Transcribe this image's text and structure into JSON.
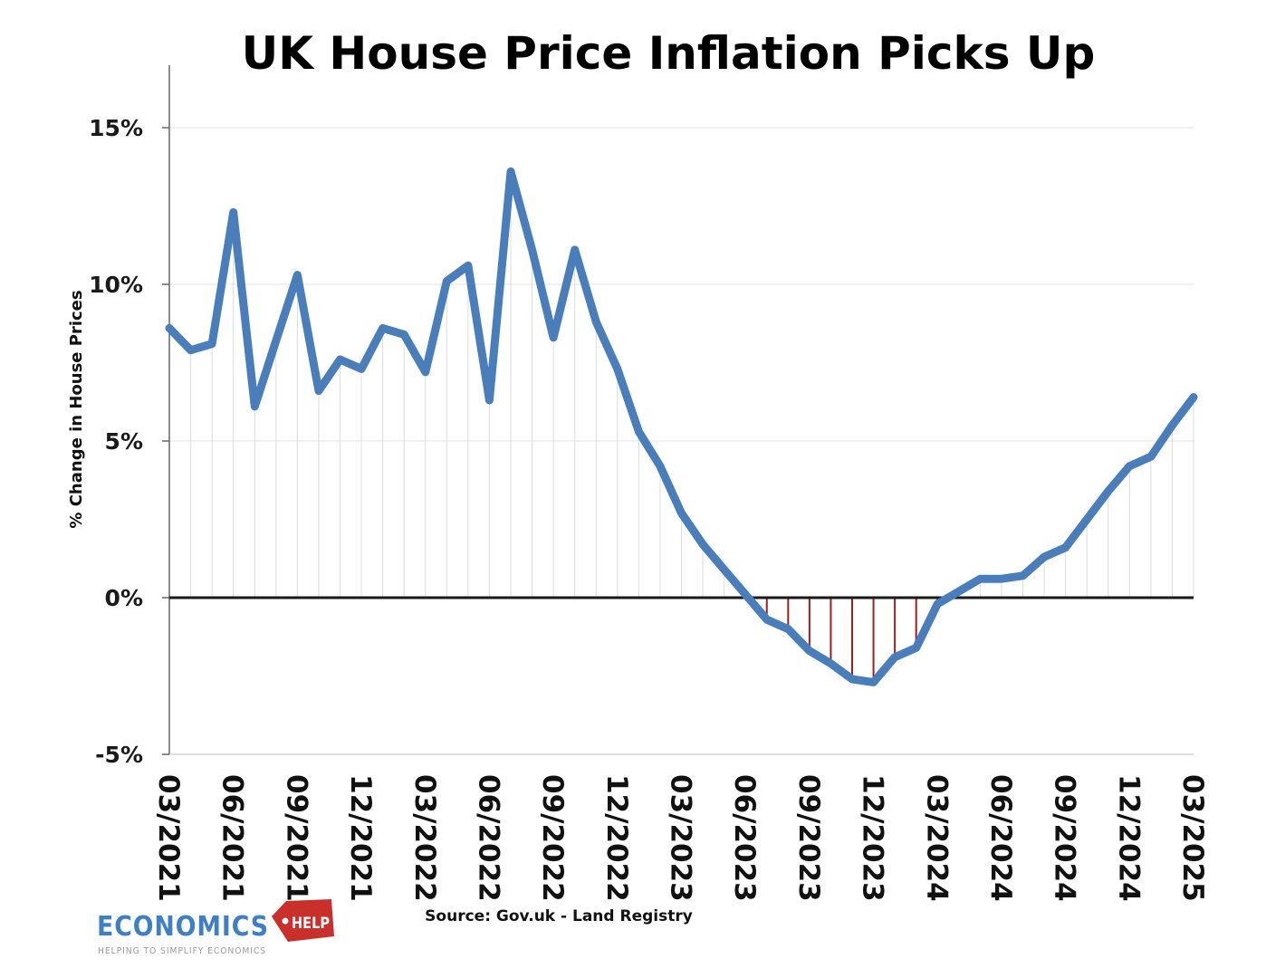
{
  "chart_data": {
    "type": "line",
    "title": "UK House Price Inflation Picks Up",
    "ylabel": "% Change in House Prices",
    "xlabel": "",
    "ylim": [
      -5,
      17
    ],
    "yticks": [
      -5,
      0,
      5,
      10,
      15
    ],
    "ytick_labels": [
      "-5%",
      "0%",
      "5%",
      "10%",
      "15%"
    ],
    "grid": true,
    "x_tick_labels": [
      "03/2021",
      "06/2021",
      "09/2021",
      "12/2021",
      "03/2022",
      "06/2022",
      "09/2022",
      "12/2022",
      "03/2023",
      "06/2023",
      "09/2023",
      "12/2023",
      "03/2024",
      "06/2024",
      "09/2024",
      "12/2024",
      "03/2025"
    ],
    "x": [
      "03/2021",
      "04/2021",
      "05/2021",
      "06/2021",
      "07/2021",
      "08/2021",
      "09/2021",
      "10/2021",
      "11/2021",
      "12/2021",
      "01/2022",
      "02/2022",
      "03/2022",
      "04/2022",
      "05/2022",
      "06/2022",
      "07/2022",
      "08/2022",
      "09/2022",
      "10/2022",
      "11/2022",
      "12/2022",
      "01/2023",
      "02/2023",
      "03/2023",
      "04/2023",
      "05/2023",
      "06/2023",
      "07/2023",
      "08/2023",
      "09/2023",
      "10/2023",
      "11/2023",
      "12/2023",
      "01/2024",
      "02/2024",
      "03/2024",
      "04/2024",
      "05/2024",
      "06/2024",
      "07/2024",
      "08/2024",
      "09/2024",
      "10/2024",
      "11/2024",
      "12/2024",
      "01/2025",
      "02/2025",
      "03/2025"
    ],
    "series": [
      {
        "name": "",
        "color": "#4a7ebb",
        "negative_marker_color": "#a01e1e",
        "values": [
          8.6,
          7.9,
          8.1,
          12.3,
          6.1,
          8.2,
          10.3,
          6.6,
          7.6,
          7.3,
          8.6,
          8.4,
          7.2,
          10.1,
          10.6,
          6.3,
          13.6,
          11.1,
          8.3,
          11.1,
          8.8,
          7.3,
          5.3,
          4.2,
          2.7,
          1.7,
          0.9,
          0.1,
          -0.7,
          -1.0,
          -1.7,
          -2.1,
          -2.6,
          -2.7,
          -1.9,
          -1.6,
          -0.2,
          0.2,
          0.6,
          0.6,
          0.7,
          1.3,
          1.6,
          2.5,
          3.4,
          4.2,
          4.5,
          5.5,
          6.4
        ]
      }
    ]
  },
  "source": "Source: Gov.uk - Land Registry",
  "logo": {
    "main": "ECONOMICS",
    "badge": "HELP",
    "tagline": "HELPING TO SIMPLIFY ECONOMICS"
  }
}
